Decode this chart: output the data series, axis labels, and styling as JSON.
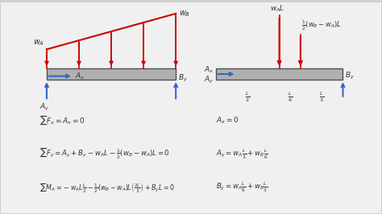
{
  "bg_color": "#d0d0d0",
  "content_bg": "#f0f0f0",
  "beam_color": "#b0b0b0",
  "beam_edge": "#505050",
  "arrow_red": "#cc0000",
  "arrow_blue": "#3366cc",
  "text_color": "#333333",
  "eq_line1": "$\\sum F_x = A_x = 0$",
  "eq_line2": "$\\sum F_y = A_y + B_y - w_A L - \\frac{1}{2}(w_B - w_A)L = 0$",
  "eq_line3": "$\\sum M_A = -w_A L\\frac{L}{2} - \\frac{1}{2}(w_B - w_A)L\\left(\\frac{2L}{3}\\right) + B_y L = 0$",
  "eq_right1": "$A_x = 0$",
  "eq_right2": "$A_y = w_A \\frac{L}{3} + w_B \\frac{L}{6}$",
  "eq_right3": "$B_y = w_A \\frac{L}{6} + w_B \\frac{L}{3}$"
}
